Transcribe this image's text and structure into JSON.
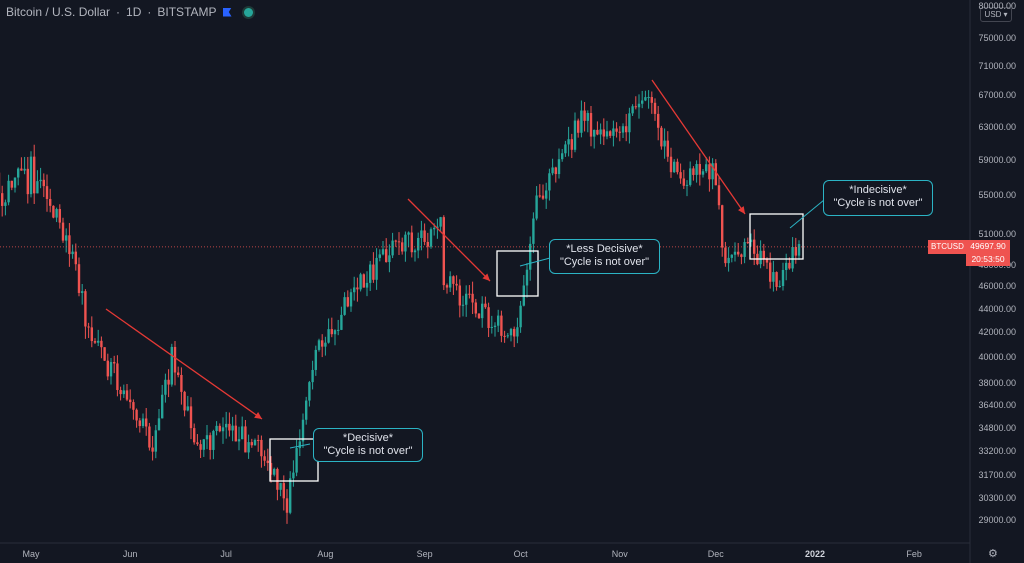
{
  "header": {
    "symbol_name": "Bitcoin / U.S. Dollar",
    "interval": "1D",
    "exchange": "BITSTAMP"
  },
  "currency_selector": {
    "label": "USD",
    "chevron": "chevron-down-icon"
  },
  "price_axis_labels": [
    "80000.00",
    "75000.00",
    "71000.00",
    "67000.00",
    "63000.00",
    "59000.00",
    "55000.00",
    "51000.00",
    "48000.00",
    "46000.00",
    "44000.00",
    "42000.00",
    "40000.00",
    "38000.00",
    "36400.00",
    "34800.00",
    "33200.00",
    "31700.00",
    "30300.00",
    "29000.00"
  ],
  "time_axis_labels": [
    "May",
    "Jun",
    "Jul",
    "Aug",
    "Sep",
    "Oct",
    "Nov",
    "Dec",
    "2022",
    "Feb"
  ],
  "last_price": {
    "ticker": "BTCUSD",
    "price": "49697.90",
    "countdown": "20:53:50"
  },
  "annotations": [
    {
      "line1": "*Decisive*",
      "line2": "\"Cycle is not over\""
    },
    {
      "line1": "*Less Decisive*",
      "line2": "\"Cycle is not over\""
    },
    {
      "line1": "*Indecisive*",
      "line2": "\"Cycle is not over\""
    }
  ],
  "colors": {
    "background": "#131722",
    "bullish": "#26a69a",
    "bearish": "#ef5350",
    "trend_arrow": "#e53935",
    "callout_border": "#2bb3c4",
    "box": "#ffffff"
  },
  "chart_data": {
    "type": "candlestick",
    "title": "Bitcoin / U.S. Dollar · 1D · BITSTAMP",
    "y_scale": "log",
    "ylim": [
      27500,
      80000
    ],
    "x_range": [
      "2021-04-29",
      "2022-02-12"
    ],
    "series": [
      {
        "name": "BTCUSD",
        "x": [
          "2021-05-03",
          "2021-05-13",
          "2021-05-19",
          "2021-05-26",
          "2021-06-08",
          "2021-06-14",
          "2021-06-22",
          "2021-07-01",
          "2021-07-14",
          "2021-07-20",
          "2021-07-29",
          "2021-08-13",
          "2021-08-23",
          "2021-09-06",
          "2021-09-07",
          "2021-09-21",
          "2021-09-29",
          "2021-10-06",
          "2021-10-20",
          "2021-10-31",
          "2021-11-09",
          "2021-11-19",
          "2021-11-30",
          "2021-12-04",
          "2021-12-12",
          "2021-12-20",
          "2021-12-27"
        ],
        "close": [
          57000,
          50000,
          42000,
          39000,
          33500,
          40000,
          33000,
          35000,
          32800,
          30000,
          40000,
          47000,
          49500,
          51500,
          46500,
          43000,
          41500,
          54000,
          64000,
          61000,
          67500,
          57000,
          58000,
          48500,
          50000,
          46700,
          49697.9
        ]
      }
    ],
    "last_price": 49697.9
  }
}
